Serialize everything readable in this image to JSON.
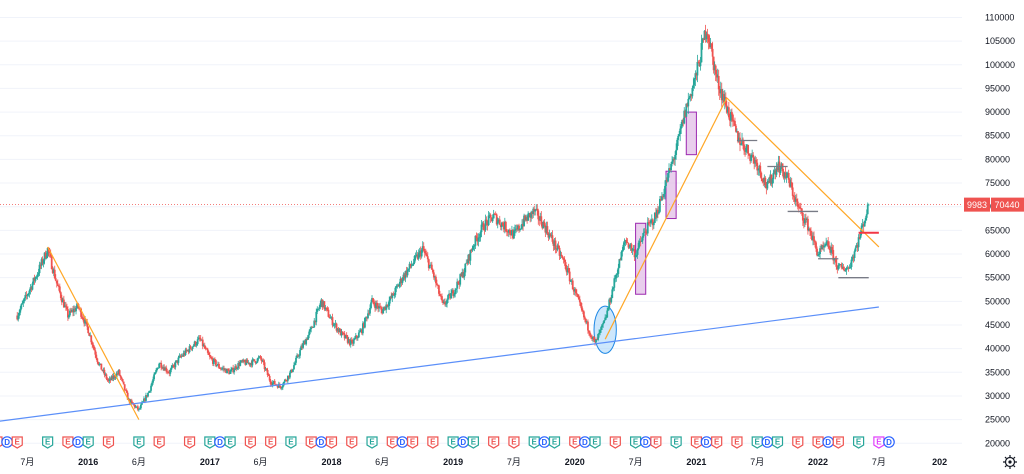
{
  "chart_data": {
    "type": "candlestick",
    "x_axis_labels": [
      "7月",
      "2016",
      "6月",
      "2017",
      "6月",
      "2018",
      "6月",
      "2019",
      "7月",
      "2020",
      "7月",
      "2021",
      "7月",
      "2022",
      "7月",
      "202"
    ],
    "y_axis": {
      "ticks": [
        20000,
        25000,
        30000,
        35000,
        40000,
        45000,
        50000,
        55000,
        60000,
        65000,
        70000,
        75000,
        80000,
        85000,
        90000,
        95000,
        100000,
        105000,
        110000
      ],
      "tick_labels": [
        "20000",
        "25000",
        "30000",
        "35000",
        "40000",
        "45000",
        "50000",
        "55000",
        "60000",
        "65000",
        "70000",
        "75000",
        "80000",
        "85000",
        "90000",
        "95000",
        "100000",
        "105000",
        "110000"
      ],
      "ylim": [
        19000,
        112000
      ]
    },
    "last_price": 70440,
    "last_price_label": "70440",
    "symbol_badge_label": "9983",
    "price_path": [
      [
        "2015-06",
        47000
      ],
      [
        "2015-08",
        56000
      ],
      [
        "2015-09",
        61000
      ],
      [
        "2015-10",
        53000
      ],
      [
        "2015-11",
        47000
      ],
      [
        "2015-12",
        49000
      ],
      [
        "2016-01",
        44000
      ],
      [
        "2016-02",
        37000
      ],
      [
        "2016-03",
        33000
      ],
      [
        "2016-04",
        35000
      ],
      [
        "2016-05",
        29000
      ],
      [
        "2016-06",
        27000
      ],
      [
        "2016-07",
        31000
      ],
      [
        "2016-08",
        37000
      ],
      [
        "2016-09",
        35000
      ],
      [
        "2016-10",
        38000
      ],
      [
        "2016-11",
        40000
      ],
      [
        "2016-12",
        42000
      ],
      [
        "2017-01",
        38000
      ],
      [
        "2017-02",
        36000
      ],
      [
        "2017-03",
        35000
      ],
      [
        "2017-04",
        37000
      ],
      [
        "2017-05",
        37000
      ],
      [
        "2017-06",
        38000
      ],
      [
        "2017-07",
        33000
      ],
      [
        "2017-08",
        32000
      ],
      [
        "2017-09",
        35000
      ],
      [
        "2017-10",
        40000
      ],
      [
        "2017-11",
        44000
      ],
      [
        "2017-12",
        50000
      ],
      [
        "2018-01",
        46000
      ],
      [
        "2018-02",
        43000
      ],
      [
        "2018-03",
        41000
      ],
      [
        "2018-04",
        44000
      ],
      [
        "2018-05",
        50000
      ],
      [
        "2018-06",
        48000
      ],
      [
        "2018-07",
        51000
      ],
      [
        "2018-08",
        55000
      ],
      [
        "2018-09",
        58000
      ],
      [
        "2018-10",
        61000
      ],
      [
        "2018-11",
        56000
      ],
      [
        "2018-12",
        49000
      ],
      [
        "2019-01",
        52000
      ],
      [
        "2019-02",
        56000
      ],
      [
        "2019-03",
        62000
      ],
      [
        "2019-04",
        66000
      ],
      [
        "2019-05",
        68000
      ],
      [
        "2019-06",
        66000
      ],
      [
        "2019-07",
        64000
      ],
      [
        "2019-08",
        67000
      ],
      [
        "2019-09",
        69000
      ],
      [
        "2019-10",
        66000
      ],
      [
        "2019-11",
        62000
      ],
      [
        "2019-12",
        58000
      ],
      [
        "2020-01",
        52000
      ],
      [
        "2020-02",
        46000
      ],
      [
        "2020-03",
        41000
      ],
      [
        "2020-04",
        46000
      ],
      [
        "2020-05",
        55000
      ],
      [
        "2020-06",
        63000
      ],
      [
        "2020-07",
        60000
      ],
      [
        "2020-08",
        65000
      ],
      [
        "2020-09",
        68000
      ],
      [
        "2020-10",
        75000
      ],
      [
        "2020-11",
        82000
      ],
      [
        "2020-12",
        91000
      ],
      [
        "2021-01",
        98000
      ],
      [
        "2021-02",
        108000
      ],
      [
        "2021-03",
        97000
      ],
      [
        "2021-04",
        91000
      ],
      [
        "2021-05",
        85000
      ],
      [
        "2021-06",
        82000
      ],
      [
        "2021-07",
        79000
      ],
      [
        "2021-08",
        74000
      ],
      [
        "2021-09",
        79000
      ],
      [
        "2021-10",
        76000
      ],
      [
        "2021-11",
        70000
      ],
      [
        "2021-12",
        66000
      ],
      [
        "2022-01",
        60000
      ],
      [
        "2022-02",
        62000
      ],
      [
        "2022-03",
        57000
      ],
      [
        "2022-04",
        57000
      ],
      [
        "2022-05",
        63000
      ],
      [
        "2022-06",
        70440
      ]
    ],
    "drawings": {
      "blue_trendline": [
        [
          "2015-04",
          24600
        ],
        [
          "2022-07",
          48800
        ]
      ],
      "orange_lines": [
        [
          [
            "2015-09",
            61500
          ],
          [
            "2016-06",
            25000
          ]
        ],
        [
          [
            "2020-04",
            42000
          ],
          [
            "2021-04",
            93000
          ]
        ],
        [
          [
            "2021-04",
            93000
          ],
          [
            "2022-07",
            61500
          ]
        ]
      ],
      "rectangles": [
        [
          [
            "2020-07",
            51500
          ],
          [
            "2020-08",
            66500
          ]
        ],
        [
          [
            "2020-10",
            67500
          ],
          [
            "2020-11",
            77500
          ]
        ],
        [
          [
            "2020-12",
            81000
          ],
          [
            "2021-01",
            90000
          ]
        ]
      ],
      "support_lines": [
        [
          [
            "2021-05",
            84000
          ],
          [
            "2021-07",
            84000
          ]
        ],
        [
          [
            "2021-08",
            78500
          ],
          [
            "2021-10",
            78500
          ]
        ],
        [
          [
            "2021-10",
            69000
          ],
          [
            "2022-01",
            69000
          ]
        ],
        [
          [
            "2022-01",
            59000
          ],
          [
            "2022-03",
            59000
          ]
        ],
        [
          [
            "2022-03",
            55000
          ],
          [
            "2022-06",
            55000
          ]
        ]
      ],
      "red_line": [
        [
          "2022-05",
          64500
        ],
        [
          "2022-07",
          64500
        ]
      ],
      "ellipse": {
        "center": [
          "2020-04",
          44000
        ],
        "rx_months": 1.1,
        "ry_value": 5000
      }
    },
    "event_markers": [
      [
        "2015-04",
        "E"
      ],
      [
        "2015-05",
        "D"
      ],
      [
        "2015-06",
        "E"
      ],
      [
        "2015-09",
        "E"
      ],
      [
        "2015-11",
        "E"
      ],
      [
        "2015-12",
        "D"
      ],
      [
        "2016-01",
        "E"
      ],
      [
        "2016-03",
        "E"
      ],
      [
        "2016-06",
        "E"
      ],
      [
        "2016-08",
        "E"
      ],
      [
        "2016-11",
        "E"
      ],
      [
        "2017-01",
        "E"
      ],
      [
        "2017-02",
        "D"
      ],
      [
        "2017-03",
        "E"
      ],
      [
        "2017-05",
        "E"
      ],
      [
        "2017-07",
        "E"
      ],
      [
        "2017-09",
        "E"
      ],
      [
        "2017-11",
        "E"
      ],
      [
        "2017-12",
        "D"
      ],
      [
        "2018-01",
        "E"
      ],
      [
        "2018-03",
        "E"
      ],
      [
        "2018-05",
        "E"
      ],
      [
        "2018-07",
        "E"
      ],
      [
        "2018-08",
        "D"
      ],
      [
        "2018-09",
        "E"
      ],
      [
        "2018-11",
        "E"
      ],
      [
        "2019-01",
        "E"
      ],
      [
        "2019-02",
        "D"
      ],
      [
        "2019-03",
        "E"
      ],
      [
        "2019-05",
        "E"
      ],
      [
        "2019-07",
        "E"
      ],
      [
        "2019-09",
        "E"
      ],
      [
        "2019-10",
        "D"
      ],
      [
        "2019-11",
        "E"
      ],
      [
        "2020-01",
        "E"
      ],
      [
        "2020-02",
        "D"
      ],
      [
        "2020-03",
        "E"
      ],
      [
        "2020-05",
        "E"
      ],
      [
        "2020-07",
        "E"
      ],
      [
        "2020-08",
        "D"
      ],
      [
        "2020-09",
        "E"
      ],
      [
        "2020-11",
        "E"
      ],
      [
        "2021-01",
        "E"
      ],
      [
        "2021-02",
        "D"
      ],
      [
        "2021-03",
        "E"
      ],
      [
        "2021-05",
        "E"
      ],
      [
        "2021-07",
        "E"
      ],
      [
        "2021-08",
        "D"
      ],
      [
        "2021-09",
        "E"
      ],
      [
        "2021-11",
        "E"
      ],
      [
        "2022-01",
        "E"
      ],
      [
        "2022-02",
        "D"
      ],
      [
        "2022-03",
        "E"
      ],
      [
        "2022-05",
        "E"
      ],
      [
        "2022-07",
        "E"
      ],
      [
        "2022-08",
        "D"
      ]
    ]
  },
  "colors": {
    "up": "#26a69a",
    "down": "#ef5350",
    "blue_line": "#5b8ff9",
    "orange_line": "#ffa726",
    "support_line": "#787b86",
    "red_line": "#f23645",
    "rect_fill": "#e1bee7",
    "rect_stroke": "#9c27b0",
    "ellipse_fill": "#90caf9",
    "ellipse_stroke": "#1e88e5",
    "price_line": "#ef5350",
    "badge_bg": "#ef5350",
    "badge_e_bg": "#ef5350",
    "badge_d_bg": "#2962ff",
    "badge_e_green_bg": "#26a69a",
    "badge_e_purple_bg": "#e040fb"
  },
  "icons": {
    "settings": "gear-icon"
  }
}
